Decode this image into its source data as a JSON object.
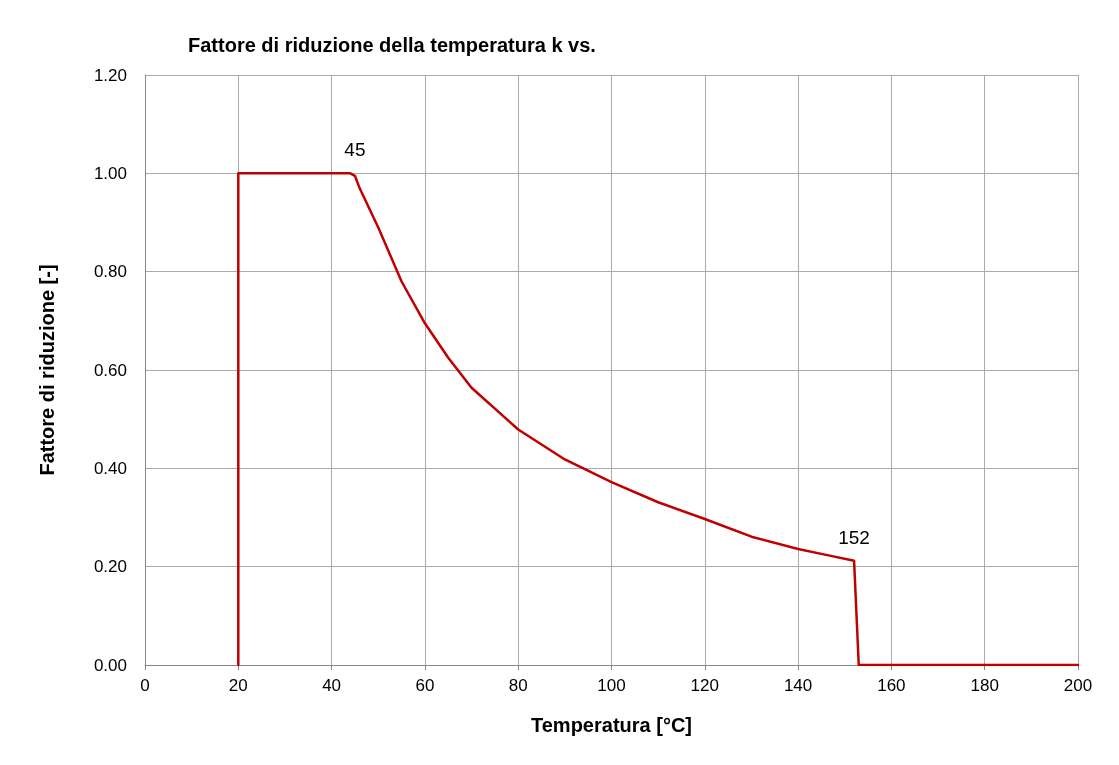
{
  "chart_data": {
    "type": "line",
    "title": "Fattore di riduzione della temperatura k vs.",
    "xlabel": "Temperatura [°C]",
    "ylabel": "Fattore di riduzione [-]",
    "series": [
      {
        "color": "#c00000",
        "x": [
          20,
          20,
          44,
          45,
          46,
          48,
          50,
          55,
          60,
          65,
          70,
          80,
          90,
          100,
          110,
          120,
          130,
          140,
          146,
          152,
          153,
          200
        ],
        "values": [
          0,
          1,
          1,
          0.995,
          0.97,
          0.93,
          0.89,
          0.78,
          0.695,
          0.625,
          0.564,
          0.479,
          0.418,
          0.372,
          0.331,
          0.297,
          0.261,
          0.236,
          0.224,
          0.212,
          0,
          0
        ]
      }
    ],
    "xlim": [
      0,
      200
    ],
    "xticks": [
      0,
      20,
      40,
      60,
      80,
      100,
      120,
      140,
      160,
      180,
      200
    ],
    "ylim": [
      0,
      1.2
    ],
    "yticks": [
      {
        "value": 0,
        "label": "0.00"
      },
      {
        "value": 0.2,
        "label": "0.20"
      },
      {
        "value": 0.4,
        "label": "0.40"
      },
      {
        "value": 0.6,
        "label": "0.60"
      },
      {
        "value": 0.8,
        "label": "0.80"
      },
      {
        "value": 1,
        "label": "1.00"
      },
      {
        "value": 1.2,
        "label": "1.20"
      }
    ],
    "annotations": [
      {
        "text": "45",
        "x": 45,
        "y": 1
      },
      {
        "text": "152",
        "x": 152,
        "y": 0.212
      }
    ],
    "grid": true,
    "marker": "none",
    "line_style": "solid"
  }
}
